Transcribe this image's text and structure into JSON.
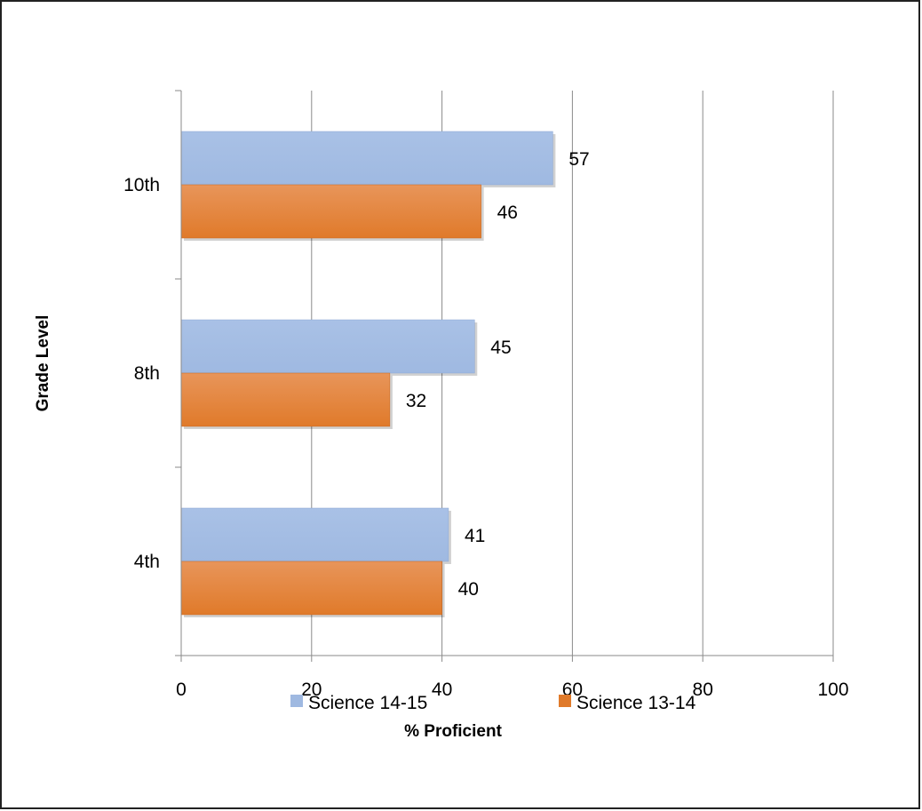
{
  "chart_data": {
    "type": "bar",
    "orientation": "horizontal",
    "categories": [
      "4th",
      "8th",
      "10th"
    ],
    "series": [
      {
        "name": "Science 14-15",
        "values": [
          41,
          45,
          57
        ],
        "color": "#9fb9e1"
      },
      {
        "name": "Science 13-14",
        "values": [
          40,
          32,
          46
        ],
        "color": "#e07a2a"
      }
    ],
    "xlabel": "% Proficient",
    "ylabel": "Grade Level",
    "xlim": [
      0,
      100
    ],
    "xticks": [
      0,
      20,
      40,
      60,
      80,
      100
    ],
    "grid": true,
    "legend_position": "bottom",
    "data_labels": true
  }
}
